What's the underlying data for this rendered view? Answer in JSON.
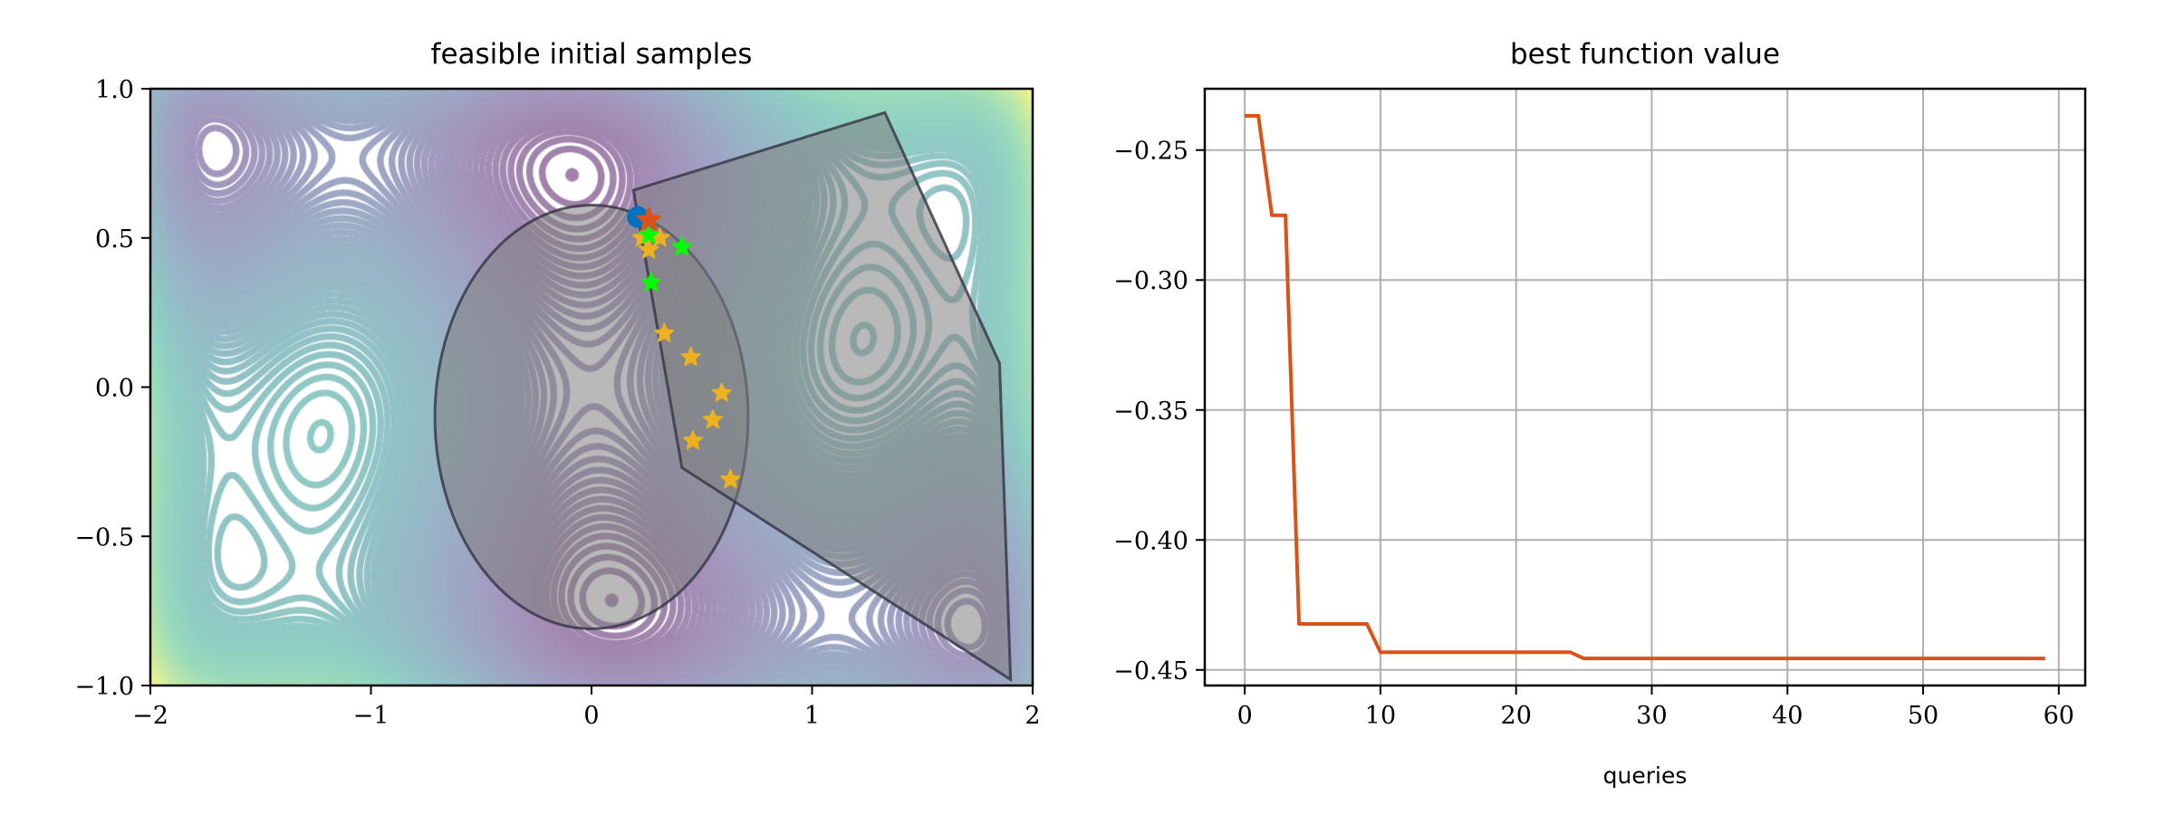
{
  "colors": {
    "best_line": "#D95319",
    "initial_point": "#0072BD",
    "best_star": "#D95319",
    "feasible_samples": "#EDB120",
    "green_samples": "#00FF00",
    "region_fill": "#7f7f7f",
    "region_edge": "#333344",
    "grid": "#b0b0b0"
  },
  "chart_data": [
    {
      "type": "scatter",
      "background": "contour (viridis colormap)",
      "title": "feasible initial samples",
      "xlabel": "",
      "ylabel": "",
      "xlim": [
        -2,
        2
      ],
      "ylim": [
        -1,
        1
      ],
      "xticks": [
        "−2",
        "−1",
        "0",
        "1",
        "2"
      ],
      "xtick_values": [
        -2,
        -1,
        0,
        1,
        2
      ],
      "yticks": [
        "−1.0",
        "−0.5",
        "0.0",
        "0.5",
        "1.0"
      ],
      "ytick_values": [
        -1,
        -0.5,
        0,
        0.5,
        1
      ],
      "grid": false,
      "constraint_ellipse": {
        "center": [
          0,
          -0.1
        ],
        "radii": [
          0.71,
          0.71
        ]
      },
      "constraint_polygon": [
        [
          0.19,
          0.66
        ],
        [
          1.33,
          0.92
        ],
        [
          1.85,
          0.08
        ],
        [
          1.9,
          -0.98
        ],
        [
          0.41,
          -0.27
        ]
      ],
      "initial_point": {
        "marker": "circle",
        "x": 0.21,
        "y": 0.57
      },
      "best_point": {
        "marker": "star",
        "x": 0.26,
        "y": 0.56
      },
      "green_samples": {
        "marker": "star",
        "x": [
          0.26,
          0.41,
          0.27
        ],
        "y": [
          0.51,
          0.47,
          0.35
        ]
      },
      "feasible_samples": {
        "marker": "star",
        "x": [
          0.23,
          0.31,
          0.26,
          0.33,
          0.45,
          0.59,
          0.55,
          0.46,
          0.63
        ],
        "y": [
          0.5,
          0.5,
          0.46,
          0.18,
          0.1,
          -0.02,
          -0.11,
          -0.18,
          -0.31
        ]
      }
    },
    {
      "type": "line",
      "title": "best function value",
      "xlabel": "queries",
      "ylabel": "",
      "xlim": [
        -2.95,
        61.95
      ],
      "ylim": [
        -0.456,
        -0.2264
      ],
      "xticks": [
        "0",
        "10",
        "20",
        "30",
        "40",
        "50",
        "60"
      ],
      "xtick_values": [
        0,
        10,
        20,
        30,
        40,
        50,
        60
      ],
      "yticks": [
        "−0.25",
        "−0.30",
        "−0.35",
        "−0.40",
        "−0.45"
      ],
      "ytick_values": [
        -0.25,
        -0.3,
        -0.35,
        -0.4,
        -0.45
      ],
      "grid": true,
      "series": [
        {
          "x": [
            0,
            1,
            2,
            3,
            4,
            9,
            10,
            24,
            25,
            59
          ],
          "y": [
            -0.2368,
            -0.2368,
            -0.2751,
            -0.2751,
            -0.4323,
            -0.4323,
            -0.4432,
            -0.4432,
            -0.4456,
            -0.4456
          ]
        }
      ]
    }
  ]
}
